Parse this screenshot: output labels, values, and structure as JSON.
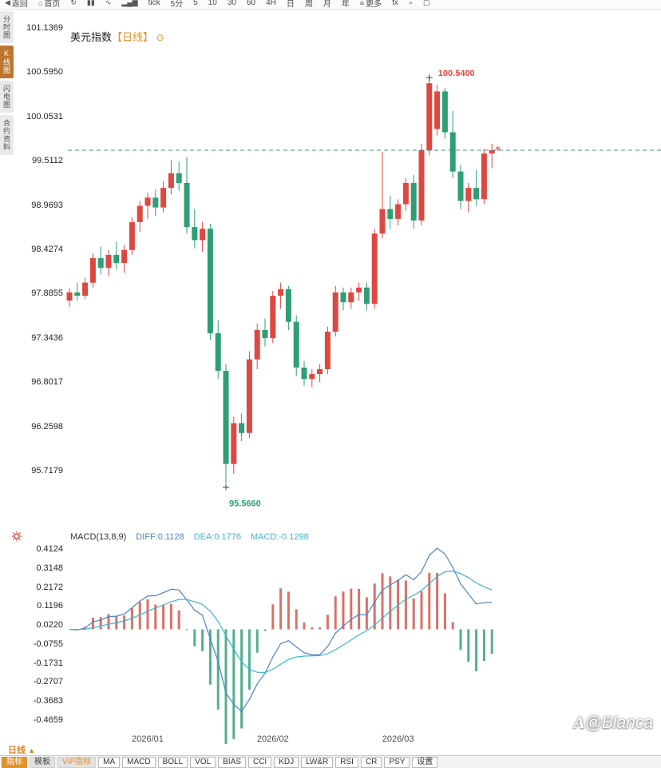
{
  "toolbar": {
    "items": [
      {
        "icon": "back-icon",
        "label": "返回"
      },
      {
        "icon": "home-icon",
        "label": "首页"
      },
      {
        "icon": "refresh-icon",
        "label": ""
      },
      {
        "icon": "candle-chart-icon",
        "label": ""
      },
      {
        "icon": "line-chart-icon",
        "label": ""
      },
      {
        "icon": "volume-icon",
        "label": ""
      },
      {
        "label": "tick"
      },
      {
        "label": "5分"
      },
      {
        "label": "5"
      },
      {
        "label": "10"
      },
      {
        "label": "30"
      },
      {
        "label": "60"
      },
      {
        "label": "4H"
      },
      {
        "label": "日"
      },
      {
        "label": "周"
      },
      {
        "label": "月"
      },
      {
        "label": "年"
      },
      {
        "icon": "more-menu-icon",
        "label": "更多"
      },
      {
        "label": "fx"
      },
      {
        "icon": "search-icon",
        "label": ""
      },
      {
        "icon": "fullscreen-icon",
        "label": ""
      }
    ]
  },
  "sidebar": {
    "items": [
      {
        "label": "分时图",
        "active": false
      },
      {
        "label": "K线图",
        "active": true
      },
      {
        "label": "闪电图",
        "active": false
      },
      {
        "label": "合约资料",
        "active": false
      }
    ]
  },
  "chart_data": [
    {
      "type": "candlestick",
      "title": "美元指数",
      "period_tag": "【日线】",
      "y_axis_labels": [
        "101.1369",
        "100.5950",
        "100.0531",
        "99.5112",
        "98.9693",
        "98.4274",
        "97.8855",
        "97.3436",
        "96.8017",
        "96.2598",
        "95.7179"
      ],
      "x_axis_labels": [
        {
          "label": "2026/01",
          "index": 10
        },
        {
          "label": "2026/02",
          "index": 26
        },
        {
          "label": "2026/03",
          "index": 42
        }
      ],
      "y_range": [
        95.7179,
        101.1369
      ],
      "high_annotation": {
        "label": "100.5400",
        "index": 46,
        "price": 100.54
      },
      "low_annotation": {
        "label": "95.5660",
        "index": 20,
        "price": 95.566
      },
      "current_price": 99.64,
      "colors": {
        "up": "#de4842",
        "down": "#2e9e74",
        "dashed_line": "#4a8b8b",
        "annotation_high": "#de4842",
        "annotation_low": "#2e9e74",
        "last_price_marker": "#d33a2f"
      },
      "ohlc": [
        [
          97.8,
          97.95,
          97.72,
          97.9
        ],
        [
          97.9,
          98.02,
          97.8,
          97.86
        ],
        [
          97.86,
          98.08,
          97.82,
          98.02
        ],
        [
          98.02,
          98.38,
          97.96,
          98.32
        ],
        [
          98.32,
          98.46,
          98.12,
          98.2
        ],
        [
          98.2,
          98.42,
          98.1,
          98.36
        ],
        [
          98.36,
          98.52,
          98.18,
          98.26
        ],
        [
          98.26,
          98.48,
          98.14,
          98.42
        ],
        [
          98.42,
          98.82,
          98.36,
          98.76
        ],
        [
          98.76,
          99.02,
          98.64,
          98.96
        ],
        [
          98.96,
          99.12,
          98.8,
          99.06
        ],
        [
          99.06,
          99.16,
          98.84,
          98.94
        ],
        [
          98.94,
          99.26,
          98.88,
          99.18
        ],
        [
          99.18,
          99.52,
          99.1,
          99.36
        ],
        [
          99.36,
          99.5,
          99.14,
          99.24
        ],
        [
          99.24,
          99.56,
          98.62,
          98.7
        ],
        [
          98.7,
          98.92,
          98.44,
          98.54
        ],
        [
          98.54,
          98.76,
          98.4,
          98.68
        ],
        [
          98.68,
          98.74,
          97.32,
          97.4
        ],
        [
          97.4,
          97.56,
          96.84,
          96.94
        ],
        [
          96.94,
          97.02,
          95.566,
          95.8
        ],
        [
          95.8,
          96.38,
          95.68,
          96.3
        ],
        [
          96.3,
          96.42,
          96.08,
          96.18
        ],
        [
          96.18,
          97.18,
          96.12,
          97.08
        ],
        [
          97.08,
          97.52,
          96.96,
          97.44
        ],
        [
          97.44,
          97.58,
          97.24,
          97.34
        ],
        [
          97.34,
          97.92,
          97.28,
          97.86
        ],
        [
          97.86,
          98.02,
          97.7,
          97.94
        ],
        [
          97.94,
          97.98,
          97.44,
          97.54
        ],
        [
          97.54,
          97.62,
          96.88,
          96.98
        ],
        [
          96.98,
          97.06,
          96.76,
          96.84
        ],
        [
          96.84,
          96.96,
          96.74,
          96.9
        ],
        [
          96.9,
          97.02,
          96.8,
          96.96
        ],
        [
          96.96,
          97.48,
          96.9,
          97.42
        ],
        [
          97.42,
          97.98,
          97.36,
          97.9
        ],
        [
          97.9,
          97.96,
          97.68,
          97.78
        ],
        [
          97.78,
          97.96,
          97.7,
          97.9
        ],
        [
          97.9,
          98.02,
          97.8,
          97.96
        ],
        [
          97.96,
          98.02,
          97.68,
          97.76
        ],
        [
          97.76,
          98.68,
          97.7,
          98.62
        ],
        [
          98.62,
          99.62,
          98.56,
          98.92
        ],
        [
          98.92,
          99.08,
          98.68,
          98.8
        ],
        [
          98.8,
          99.04,
          98.72,
          98.98
        ],
        [
          98.98,
          99.3,
          98.9,
          99.24
        ],
        [
          99.24,
          99.34,
          98.68,
          98.78
        ],
        [
          98.78,
          99.72,
          98.72,
          99.64
        ],
        [
          99.64,
          100.54,
          99.58,
          100.46
        ],
        [
          99.9,
          100.44,
          99.82,
          100.36
        ],
        [
          100.36,
          100.4,
          99.78,
          99.86
        ],
        [
          99.86,
          100.12,
          99.3,
          99.38
        ],
        [
          99.38,
          99.46,
          98.92,
          99.02
        ],
        [
          99.02,
          99.24,
          98.88,
          99.18
        ],
        [
          99.18,
          99.4,
          98.96,
          99.04
        ],
        [
          99.04,
          99.66,
          98.98,
          99.6
        ],
        [
          99.6,
          99.72,
          99.42,
          99.64
        ]
      ]
    },
    {
      "type": "macd",
      "title": "MACD(13,8,9)",
      "diff_label": "DIFF:0.1128",
      "dea_label": "DEA:0.1776",
      "macd_label": "MACD:-0.1298",
      "params": {
        "fast": 8,
        "slow": 13,
        "signal": 9
      },
      "y_axis_labels": [
        "0.4124",
        "0.3148",
        "0.2172",
        "0.1196",
        "0.0220",
        "-0.0755",
        "-0.1731",
        "-0.2707",
        "-0.3683",
        "-0.4659"
      ],
      "colors": {
        "diff_line": "#4f83c2",
        "dea_line": "#3bb6c9",
        "hist_pos": "#cf5a50",
        "hist_neg": "#35a278"
      }
    }
  ],
  "period_selector": {
    "label": "日线",
    "arrow": "▲"
  },
  "bottom_bar": {
    "items": [
      {
        "label": "指标",
        "style": "active"
      },
      {
        "label": "模板",
        "style": "plain"
      },
      {
        "label": "VIP指标",
        "style": "vip"
      },
      {
        "label": "MA",
        "style": "cell"
      },
      {
        "label": "MACD",
        "style": "cell"
      },
      {
        "label": "BOLL",
        "style": "cell"
      },
      {
        "label": "VOL",
        "style": "cell"
      },
      {
        "label": "BIAS",
        "style": "cell"
      },
      {
        "label": "CCI",
        "style": "cell"
      },
      {
        "label": "KDJ",
        "style": "cell"
      },
      {
        "label": "LW&R",
        "style": "cell"
      },
      {
        "label": "RSI",
        "style": "cell"
      },
      {
        "label": "CR",
        "style": "cell"
      },
      {
        "label": "PSY",
        "style": "cell"
      },
      {
        "label": "设置",
        "style": "cell"
      }
    ]
  },
  "watermark": {
    "logo": "A",
    "text": "@Blanca"
  }
}
